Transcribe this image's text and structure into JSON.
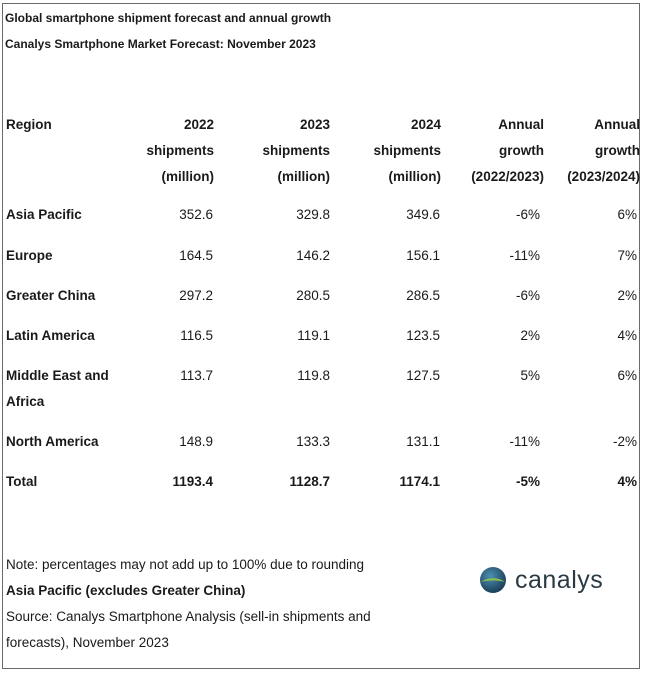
{
  "title": "Global smartphone shipment forecast and annual growth",
  "subtitle": "Canalys Smartphone Market Forecast: November 2023",
  "headers": {
    "region": "Region",
    "y2022": [
      "2022",
      "shipments",
      "(million)"
    ],
    "y2023": [
      "2023",
      "shipments",
      "(million)"
    ],
    "y2024": [
      "2024",
      "shipments",
      "(million)"
    ],
    "growth1": [
      "Annual",
      "growth",
      "(2022/2023)"
    ],
    "growth2": [
      "Annual",
      "growth",
      "(2023/2024)"
    ]
  },
  "rows": [
    {
      "region": "Asia Pacific",
      "y2022": "352.6",
      "y2023": "329.8",
      "y2024": "349.6",
      "g1": "-6%",
      "g2": "6%"
    },
    {
      "region": "Europe",
      "y2022": "164.5",
      "y2023": "146.2",
      "y2024": "156.1",
      "g1": "-11%",
      "g2": "7%"
    },
    {
      "region": "Greater China",
      "y2022": "297.2",
      "y2023": "280.5",
      "y2024": "286.5",
      "g1": "-6%",
      "g2": "2%"
    },
    {
      "region": "Latin America",
      "y2022": "116.5",
      "y2023": "119.1",
      "y2024": "123.5",
      "g1": "2%",
      "g2": "4%"
    },
    {
      "region": "Middle East and Africa",
      "y2022": "113.7",
      "y2023": "119.8",
      "y2024": "127.5",
      "g1": "5%",
      "g2": "6%"
    },
    {
      "region": "North America",
      "y2022": "148.9",
      "y2023": "133.3",
      "y2024": "131.1",
      "g1": "-11%",
      "g2": "-2%"
    }
  ],
  "total": {
    "region": "Total",
    "y2022": "1193.4",
    "y2023": "1128.7",
    "y2024": "1174.1",
    "g1": "-5%",
    "g2": "4%"
  },
  "footer": {
    "note": "Note: percentages may not add up to 100% due to rounding",
    "ap_note": "Asia Pacific (excludes Greater China)",
    "source": "Source: Canalys Smartphone Analysis (sell-in shipments and forecasts), November 2023"
  },
  "logo": {
    "text": "canalys",
    "color_dark": "#1f4f6e",
    "color_light": "#7fb24a"
  }
}
